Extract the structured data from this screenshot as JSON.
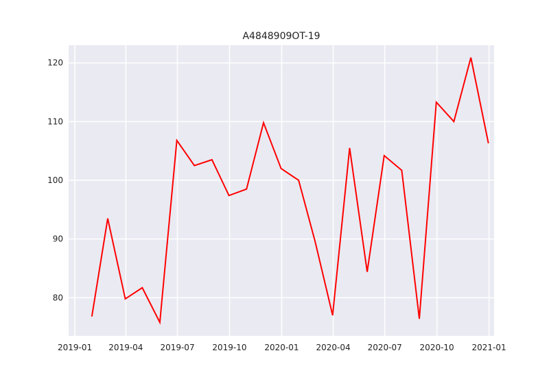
{
  "chart_data": {
    "type": "line",
    "title": "A4848909OT-19",
    "xlabel": "",
    "ylabel": "",
    "x": [
      "2019-01-31",
      "2019-02-28",
      "2019-03-31",
      "2019-04-30",
      "2019-05-31",
      "2019-06-30",
      "2019-07-31",
      "2019-08-31",
      "2019-09-30",
      "2019-10-31",
      "2019-11-30",
      "2019-12-31",
      "2020-01-31",
      "2020-02-29",
      "2020-03-31",
      "2020-04-30",
      "2020-05-31",
      "2020-06-30",
      "2020-07-31",
      "2020-08-31",
      "2020-09-30",
      "2020-10-31",
      "2020-11-30",
      "2020-12-31"
    ],
    "series": [
      {
        "values": [
          76.8,
          93.5,
          79.8,
          81.7,
          75.8,
          106.8,
          102.5,
          103.5,
          97.4,
          98.5,
          109.8,
          102.0,
          100.0,
          89.6,
          77.0,
          105.5,
          84.4,
          104.2,
          101.7,
          76.4,
          113.3,
          110.0,
          120.9,
          106.3
        ],
        "color": "#ff0000"
      }
    ],
    "xlim": [
      "2018-12-21",
      "2021-01-10"
    ],
    "ylim": [
      73.5,
      123.0
    ],
    "x_ticks": [
      "2019-01-01",
      "2019-04-01",
      "2019-07-01",
      "2019-10-01",
      "2020-01-01",
      "2020-04-01",
      "2020-07-01",
      "2020-10-01",
      "2021-01-01"
    ],
    "x_tick_labels": [
      "2019-01",
      "2019-04",
      "2019-07",
      "2019-10",
      "2020-01",
      "2020-04",
      "2020-07",
      "2020-10",
      "2021-01"
    ],
    "y_ticks": [
      80,
      90,
      100,
      110,
      120
    ],
    "y_tick_labels": [
      "80",
      "90",
      "100",
      "110",
      "120"
    ],
    "grid": true,
    "background_color": "#eaeaf2",
    "grid_color": "#ffffff",
    "legend": "none"
  }
}
